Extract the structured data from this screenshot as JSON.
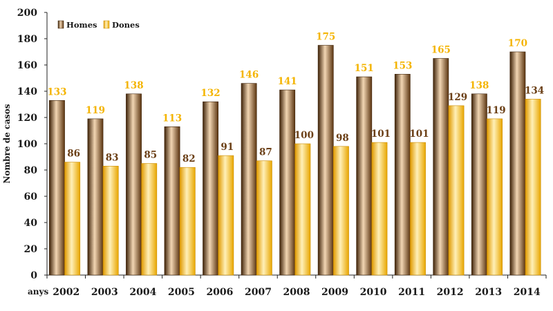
{
  "chart_data": {
    "type": "bar",
    "categories": [
      "2002",
      "2003",
      "2004",
      "2005",
      "2006",
      "2007",
      "2008",
      "2009",
      "2010",
      "2011",
      "2012",
      "2013",
      "2014"
    ],
    "series": [
      {
        "name": "Homes",
        "values": [
          133,
          119,
          138,
          113,
          132,
          146,
          141,
          175,
          151,
          153,
          165,
          138,
          170
        ],
        "color": "#7a4a1e"
      },
      {
        "name": "Dones",
        "values": [
          86,
          83,
          85,
          82,
          91,
          87,
          100,
          98,
          101,
          101,
          129,
          119,
          134
        ],
        "color": "#f4b400"
      }
    ],
    "ylabel": "Nombre de casos",
    "xunit_label": "anys",
    "ylim": [
      0,
      200
    ],
    "yticks": [
      0,
      20,
      40,
      60,
      80,
      100,
      120,
      140,
      160,
      180,
      200
    ],
    "legend_position": "top-left",
    "grid": false,
    "label_colors": {
      "Homes": "#f4b400",
      "Dones": "#6b3f16"
    }
  }
}
